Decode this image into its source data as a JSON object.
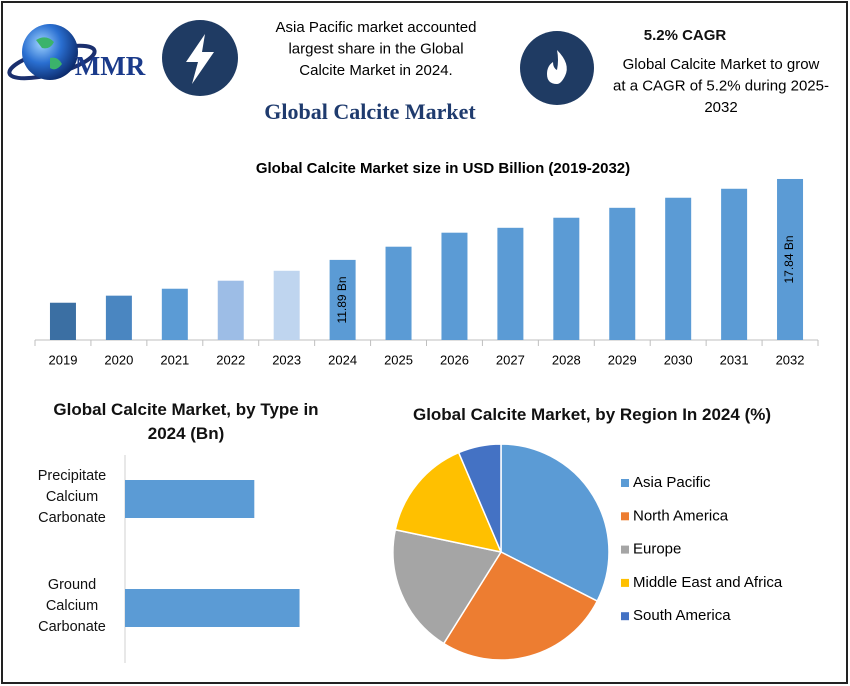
{
  "header": {
    "logo": "MMR",
    "note_left": [
      "Asia Pacific market accounted",
      "largest share in the Global",
      "Calcite Market in 2024."
    ],
    "cagr_title": "5.2% CAGR",
    "note_right": [
      "Global Calcite Market to grow",
      "at a CAGR of 5.2% during 2025-",
      "2032"
    ],
    "title": "Global Calcite Market"
  },
  "chart_data": [
    {
      "type": "bar",
      "title": "Global Calcite Market size in USD Billion (2019-2032)",
      "categories": [
        "2019",
        "2020",
        "2021",
        "2022",
        "2023",
        "2024",
        "2025",
        "2026",
        "2027",
        "2028",
        "2029",
        "2030",
        "2031",
        "2032"
      ],
      "values": [
        8.74,
        9.26,
        9.77,
        10.36,
        11.09,
        11.89,
        12.86,
        13.89,
        14.25,
        14.99,
        15.72,
        16.46,
        17.12,
        17.84
      ],
      "value_labels": [
        null,
        null,
        null,
        null,
        null,
        "11.89 Bn",
        null,
        null,
        null,
        null,
        null,
        null,
        null,
        "17.84 Bn"
      ],
      "colors": [
        "#3b6fa3",
        "#4a86c1",
        "#5b9bd5",
        "#9dbde6",
        "#bfd5ef",
        "#5b9bd5",
        "#5b9bd5",
        "#5b9bd5",
        "#5b9bd5",
        "#5b9bd5",
        "#5b9bd5",
        "#5b9bd5",
        "#5b9bd5",
        "#5b9bd5"
      ],
      "ylim": [
        6,
        18.5
      ]
    },
    {
      "type": "hbar",
      "title": "Global Calcite Market, by Type in 2024 (Bn)",
      "categories": [
        "Precipitate Calcium Carbonate",
        "Ground Calcium Carbonate"
      ],
      "values": [
        5.06,
        6.83
      ],
      "color": "#5b9bd5",
      "xlim": [
        0,
        9
      ]
    },
    {
      "type": "pie",
      "title": "Global Calcite Market, by Region In 2024 (%)",
      "categories": [
        "Asia Pacific",
        "North America",
        "Europe",
        "Middle East and Africa",
        "South America"
      ],
      "values": [
        32.5,
        26.4,
        19.4,
        15.3,
        6.4
      ],
      "colors": [
        "#5b9bd5",
        "#ed7d31",
        "#a5a5a5",
        "#ffc000",
        "#4472c4"
      ],
      "legend": "right"
    }
  ]
}
